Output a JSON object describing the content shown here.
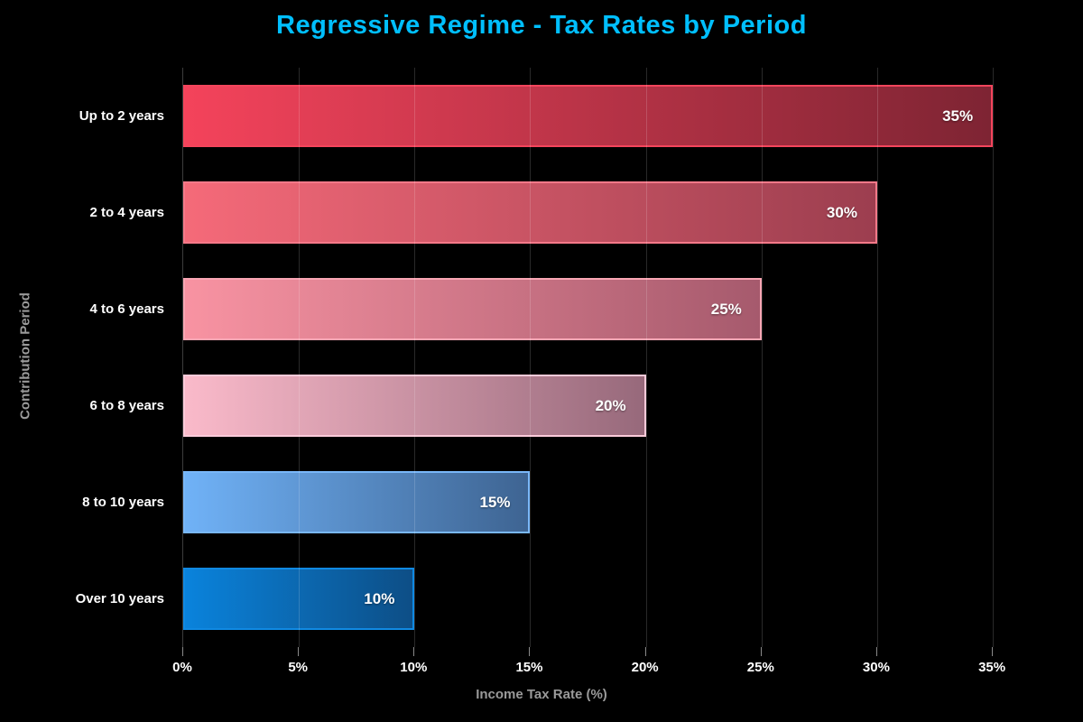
{
  "colors": {
    "background": "#000000",
    "title": "#00bfff",
    "axis_label": "#9a9a9a",
    "tick_label": "#ffffff",
    "category_label": "#ffffff",
    "value_label": "#ffffff",
    "axis_line": "#3c3c3c",
    "gridline": "rgba(255,255,255,0.16)",
    "tick_mark": "#8a8a8a"
  },
  "chart_data": {
    "type": "bar",
    "orientation": "horizontal",
    "title": "Regressive Regime - Tax Rates by Period",
    "xlabel": "Income Tax Rate (%)",
    "ylabel": "Contribution Period",
    "categories": [
      "Up to 2 years",
      "2 to 4 years",
      "4 to 6 years",
      "6 to 8 years",
      "8 to 10 years",
      "Over 10 years"
    ],
    "values": [
      35,
      30,
      25,
      20,
      15,
      10
    ],
    "value_labels": [
      "35%",
      "30%",
      "25%",
      "20%",
      "15%",
      "10%"
    ],
    "xtick_values": [
      0,
      5,
      10,
      15,
      20,
      25,
      30,
      35
    ],
    "xtick_labels": [
      "0%",
      "5%",
      "10%",
      "15%",
      "20%",
      "25%",
      "30%",
      "35%"
    ],
    "xlim": [
      0,
      38
    ],
    "grid": "vertical",
    "legend": "none",
    "bar_styles": [
      {
        "color_start": "#f4435b",
        "color_end": "#7e2433",
        "border": "#f4455c"
      },
      {
        "color_start": "#f56a79",
        "color_end": "#9c3e4f",
        "border": "#f67989"
      },
      {
        "color_start": "#f893a2",
        "color_end": "#a65a6d",
        "border": "#f9a6b4"
      },
      {
        "color_start": "#fabaca",
        "color_end": "#97697b",
        "border": "#fbcbda"
      },
      {
        "color_start": "#70b2f7",
        "color_end": "#3e6492",
        "border": "#79b7f8"
      },
      {
        "color_start": "#0a83dc",
        "color_end": "#0d4e86",
        "border": "#1089e2"
      }
    ]
  }
}
